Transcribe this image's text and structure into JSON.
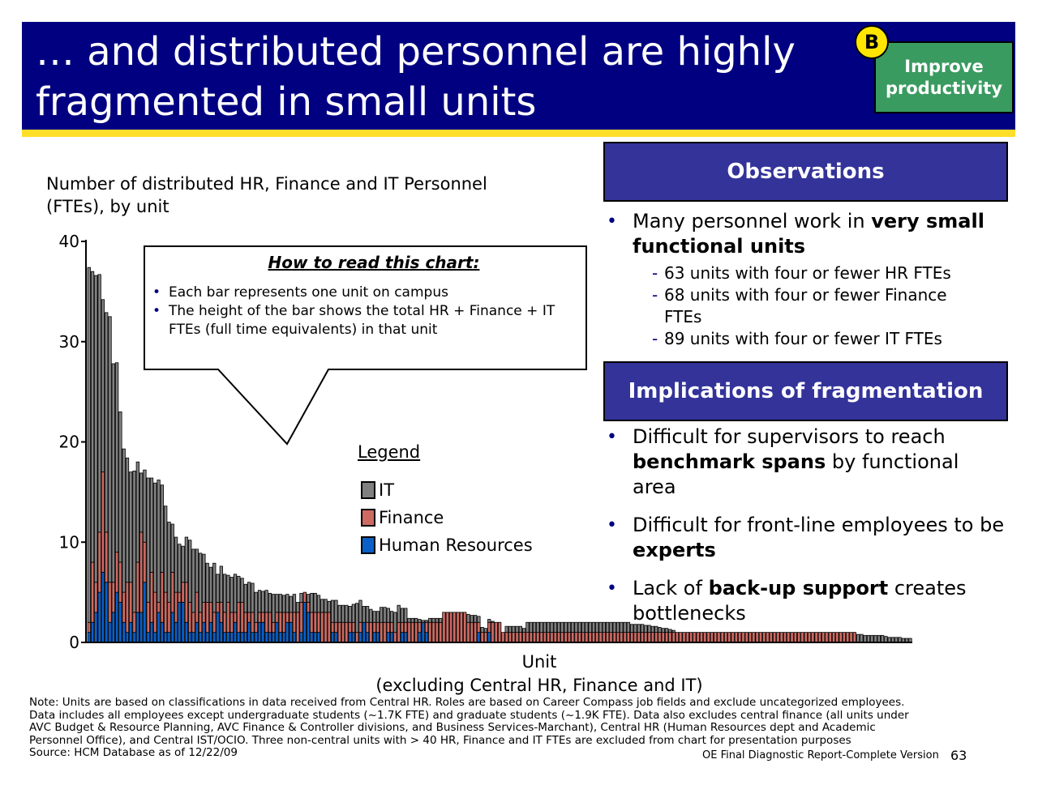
{
  "header": {
    "title": "… and distributed personnel are highly fragmented in small units",
    "badge_letter": "B",
    "badge_label": "Improve productivity"
  },
  "chart_title": "Number of distributed HR, Finance and IT Personnel (FTEs), by unit",
  "callout": {
    "heading": "How to read this chart:",
    "items": [
      "Each bar represents one unit on campus",
      "The height of the bar shows the total HR + Finance + IT FTEs (full time equivalents) in that unit"
    ]
  },
  "legend": {
    "title": "Legend",
    "items": [
      {
        "label": "IT",
        "color": "#808080"
      },
      {
        "label": "Finance",
        "color": "#cd6a62"
      },
      {
        "label": "Human Resources",
        "color": "#0a60c8"
      }
    ]
  },
  "chart_data": {
    "type": "bar",
    "stacked": true,
    "title": "Number of distributed HR, Finance and IT Personnel (FTEs), by unit",
    "xlabel": "Unit\n(excluding Central HR, Finance and IT)",
    "ylabel": "",
    "ylim": [
      0,
      40
    ],
    "yticks": [
      0,
      10,
      20,
      30,
      40
    ],
    "series": [
      {
        "name": "Human Resources",
        "values": [
          1,
          2,
          3,
          5,
          7,
          6,
          2,
          3,
          5,
          4,
          2,
          1,
          2,
          1,
          3,
          3,
          6,
          1,
          2,
          1,
          3,
          2,
          1,
          1,
          3,
          2,
          4,
          4,
          2,
          1,
          1,
          2,
          1,
          2,
          1,
          2,
          1,
          3,
          2,
          1,
          1,
          1,
          2,
          1,
          1,
          1,
          2,
          1,
          1,
          2,
          2,
          1,
          1,
          1,
          2,
          1,
          1,
          2,
          2,
          1,
          0,
          1,
          4,
          3,
          1,
          1,
          1,
          0,
          0,
          0,
          1,
          1,
          0,
          0,
          0,
          1,
          1,
          0,
          1,
          2,
          1,
          0,
          1,
          1,
          0,
          0,
          1,
          1,
          0,
          0,
          1,
          1,
          0,
          0,
          0,
          1,
          2,
          1,
          0,
          0,
          0,
          0,
          0,
          0,
          0,
          0,
          0,
          0,
          0,
          0,
          0,
          0,
          1,
          0,
          0,
          1,
          0,
          0,
          0,
          0,
          0,
          0,
          0,
          0,
          0,
          0,
          0,
          0,
          0,
          0,
          0,
          0,
          0,
          0,
          0,
          0,
          0,
          0,
          0,
          0,
          0,
          0,
          0,
          0,
          0,
          0,
          0,
          0,
          0,
          0,
          0,
          0,
          0,
          0,
          0,
          0,
          0,
          0,
          0,
          0,
          0,
          0,
          0,
          0,
          0,
          0,
          0,
          0,
          0,
          0,
          0,
          0,
          0,
          0,
          0,
          0,
          0,
          0,
          0,
          0,
          0,
          0,
          0,
          0,
          0,
          0,
          0,
          0,
          0,
          0,
          0,
          0,
          0,
          0,
          0,
          0,
          0,
          0,
          0,
          0,
          0,
          0,
          0,
          0,
          0,
          0,
          0,
          0,
          0,
          0,
          0,
          0,
          0,
          0,
          0,
          0,
          0,
          0,
          0,
          0,
          0,
          0,
          0,
          0,
          0,
          0,
          0,
          0,
          0,
          0,
          0,
          0,
          0,
          0,
          0,
          0,
          0
        ]
      },
      {
        "name": "Finance",
        "values": [
          1,
          6,
          3,
          6,
          10,
          5,
          4,
          3,
          4,
          4,
          3,
          5,
          4,
          2,
          5,
          8,
          4,
          3,
          5,
          4,
          1,
          5,
          4,
          3,
          4,
          3,
          1,
          2,
          4,
          3,
          2,
          3,
          2,
          2,
          3,
          2,
          2,
          1,
          2,
          2,
          3,
          2,
          1,
          3,
          3,
          2,
          1,
          2,
          1,
          1,
          1,
          2,
          2,
          1,
          1,
          2,
          2,
          1,
          1,
          2,
          3,
          3,
          1,
          1,
          2,
          2,
          2,
          3,
          3,
          3,
          1,
          1,
          2,
          2,
          2,
          1,
          1,
          1,
          1,
          0,
          1,
          2,
          1,
          1,
          2,
          2,
          1,
          1,
          1,
          2,
          1,
          1,
          2,
          2,
          2,
          1,
          0,
          1,
          2,
          2,
          2,
          2,
          3,
          3,
          3,
          3,
          3,
          3,
          3,
          2,
          2,
          2,
          1,
          1,
          1,
          1,
          2,
          2,
          2,
          1,
          1,
          1,
          1,
          1,
          1,
          1,
          1,
          1,
          1,
          1,
          1,
          1,
          1,
          1,
          1,
          1,
          1,
          1,
          1,
          1,
          1,
          1,
          1,
          1,
          1,
          1,
          1,
          1,
          1,
          1,
          1,
          1,
          1,
          1,
          1,
          1,
          1,
          1,
          1,
          1,
          1,
          1,
          1,
          1,
          1,
          1,
          1,
          1,
          1,
          1,
          1,
          1,
          1,
          1,
          1,
          1,
          1,
          1,
          1,
          1,
          1,
          1,
          1,
          1,
          1,
          1,
          1,
          1,
          1,
          1,
          1,
          1,
          1,
          1,
          1,
          1,
          1,
          1,
          1,
          1,
          1,
          1,
          1,
          1,
          1,
          1,
          1,
          1,
          1,
          1,
          1,
          1,
          1,
          1,
          1,
          1,
          1,
          1,
          1,
          1,
          1,
          0,
          0,
          0,
          0,
          0,
          0,
          0,
          0,
          0,
          0,
          0,
          0,
          0,
          0,
          0,
          0,
          0,
          0,
          0,
          0
        ]
      },
      {
        "name": "IT",
        "values": [
          35.4,
          29,
          30.6,
          25.7,
          17.2,
          21.9,
          26.5,
          21.8,
          18.9,
          15,
          14.3,
          12.4,
          11,
          14.1,
          10,
          5.9,
          7.2,
          12.4,
          9.4,
          10.9,
          12.2,
          8.7,
          8.6,
          8,
          4.8,
          5.5,
          4.8,
          3.6,
          4.5,
          6.2,
          6.3,
          4.3,
          5.9,
          4.8,
          3.9,
          3.5,
          4.9,
          2.8,
          3.6,
          3.8,
          2.7,
          3.5,
          3.8,
          2.6,
          2.4,
          2.8,
          3,
          2.9,
          3,
          2.2,
          2.1,
          2.2,
          1.9,
          2.8,
          1.8,
          1.8,
          1.7,
          1.8,
          1.6,
          1.8,
          1,
          0.9,
          0,
          0.8,
          1.9,
          1.9,
          1.7,
          1.3,
          1.3,
          1.1,
          2.2,
          2.2,
          1.7,
          1.7,
          1.7,
          1.6,
          1.8,
          2.9,
          2.2,
          1.6,
          1.6,
          1.3,
          1.1,
          1.1,
          1.5,
          1.5,
          1.4,
          1.1,
          2,
          1.7,
          1.4,
          1.4,
          0.4,
          0.4,
          0.4,
          0.3,
          0.2,
          0.2,
          0.4,
          0.4,
          0.4,
          0.4,
          0,
          0,
          0,
          0,
          0,
          0,
          0,
          0.8,
          0.7,
          0.7,
          0.6,
          0.5,
          0.4,
          0.3,
          0.1,
          0,
          0,
          0,
          0.6,
          0.6,
          0.6,
          0.6,
          0.6,
          0.4,
          1,
          1,
          1,
          1,
          1,
          1,
          1,
          1,
          1,
          1,
          1,
          1,
          1,
          1,
          1,
          1,
          1,
          1,
          1,
          1,
          1,
          1,
          1,
          1,
          1,
          1,
          1,
          1,
          1,
          1,
          0.8,
          0.8,
          0.8,
          0.8,
          0.7,
          0.7,
          0.6,
          0.6,
          0.5,
          0.4,
          0.4,
          0.3,
          0.2,
          0,
          0,
          0,
          0,
          0,
          0,
          0,
          0,
          0,
          0,
          0,
          0,
          0,
          0,
          0,
          0,
          0,
          0,
          0,
          0,
          0,
          0,
          0,
          0,
          0,
          0,
          0,
          0,
          0,
          0,
          0,
          0,
          0,
          0,
          0,
          0,
          0,
          0,
          0,
          0,
          0,
          0,
          0,
          0,
          0,
          0,
          0,
          0,
          0,
          0,
          0,
          0,
          0.8,
          0.8,
          0.7,
          0.7,
          0.7,
          0.7,
          0.7,
          0.7,
          0.6,
          0.5,
          0.5,
          0.5,
          0.5,
          0.4,
          0.4,
          0.4,
          0.4,
          0.3,
          0.3,
          0.3,
          0.3,
          0.2,
          0.2,
          0.2
        ]
      }
    ]
  },
  "xlabel_line1": "Unit",
  "xlabel_line2": "(excluding Central HR, Finance and IT)",
  "observations": {
    "heading": "Observations",
    "bullet_prefix": "Many personnel work in ",
    "bullet_bold": "very small functional units",
    "sub_items": [
      "63 units with four or fewer HR FTEs",
      "68 units with four or fewer Finance FTEs",
      "89 units with four or fewer IT FTEs"
    ]
  },
  "implications": {
    "heading": "Implications of fragmentation",
    "b1_pre": "Difficult for supervisors to reach ",
    "b1_bold": "benchmark spans",
    "b1_post": " by functional area",
    "b2_pre": "Difficult for front-line employees to be ",
    "b2_bold": "experts",
    "b3_pre": "Lack of ",
    "b3_bold": "back-up support",
    "b3_post": " creates bottlenecks"
  },
  "note": {
    "line1": "Note: Units are based on classifications in data received from Central HR. Roles are based on Career Compass job fields and exclude uncategorized employees.",
    "line2": "Data includes all employees except undergraduate students (~1.7K FTE) and graduate students (~1.9K FTE). Data also excludes central finance (all units under",
    "line3": "AVC Budget & Resource Planning, AVC Finance & Controller divisions, and Business Services-Marchant), Central HR (Human Resources dept and Academic",
    "line4": "Personnel Office), and Central IST/OCIO. Three non-central units with > 40 HR, Finance and IT FTEs are excluded from chart for presentation purposes",
    "source": "Source: HCM Database as of 12/22/09"
  },
  "footer": {
    "report": "OE Final Diagnostic Report-Complete Version",
    "page": "63"
  }
}
